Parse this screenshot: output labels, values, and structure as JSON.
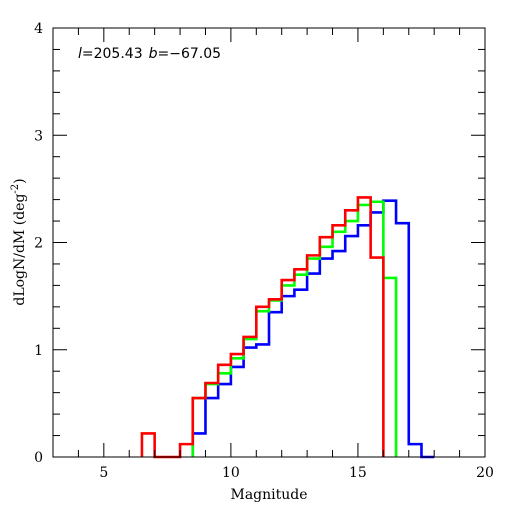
{
  "chart_data": {
    "type": "line",
    "title": "",
    "xlabel": "Magnitude",
    "ylabel": "dLogN/dM (deg",
    "ylabel_sup": "-2",
    "ylabel_close": ")",
    "xlim": [
      3,
      20
    ],
    "ylim": [
      0,
      4
    ],
    "x_ticks": [
      "5",
      "10",
      "15",
      "20"
    ],
    "y_ticks": [
      "0",
      "1",
      "2",
      "3",
      "4"
    ],
    "annotation": {
      "l_symbol": "l",
      "l_value": "=205.43",
      "b_symbol": "b",
      "b_value": "=−67.05"
    },
    "grid": false,
    "series": [
      {
        "color": "#0000ff",
        "bin_edges": [
          8.5,
          9.0,
          9.5,
          10.0,
          10.5,
          11.0,
          11.5,
          12.0,
          12.5,
          13.0,
          13.5,
          14.0,
          14.5,
          15.0,
          15.5,
          16.0,
          16.5,
          17.0,
          17.5,
          18.0
        ],
        "values": [
          0.22,
          0.55,
          0.68,
          0.84,
          1.02,
          1.05,
          1.35,
          1.5,
          1.56,
          1.71,
          1.85,
          1.92,
          2.06,
          2.16,
          2.28,
          2.39,
          2.18,
          0.12,
          0.0
        ]
      },
      {
        "color": "#00ff00",
        "bin_edges": [
          8.5,
          9.0,
          9.5,
          10.0,
          10.5,
          11.0,
          11.5,
          12.0,
          12.5,
          13.0,
          13.5,
          14.0,
          14.5,
          15.0,
          15.5,
          16.0,
          16.5
        ],
        "values": [
          0.55,
          0.68,
          0.78,
          0.92,
          1.1,
          1.36,
          1.46,
          1.6,
          1.7,
          1.85,
          1.96,
          2.1,
          2.2,
          2.35,
          2.38,
          1.67
        ]
      },
      {
        "color": "#ff0000",
        "bin_edges": [
          6.5,
          7.0,
          7.5,
          8.0,
          8.5,
          9.0,
          9.5,
          10.0,
          10.5,
          11.0,
          11.5,
          12.0,
          12.5,
          13.0,
          13.5,
          14.0,
          14.5,
          15.0,
          15.5,
          16.0
        ],
        "values": [
          0.22,
          0.0,
          0.0,
          0.12,
          0.55,
          0.69,
          0.86,
          0.96,
          1.12,
          1.4,
          1.47,
          1.65,
          1.75,
          1.88,
          2.05,
          2.16,
          2.3,
          2.42,
          1.86
        ]
      }
    ]
  }
}
